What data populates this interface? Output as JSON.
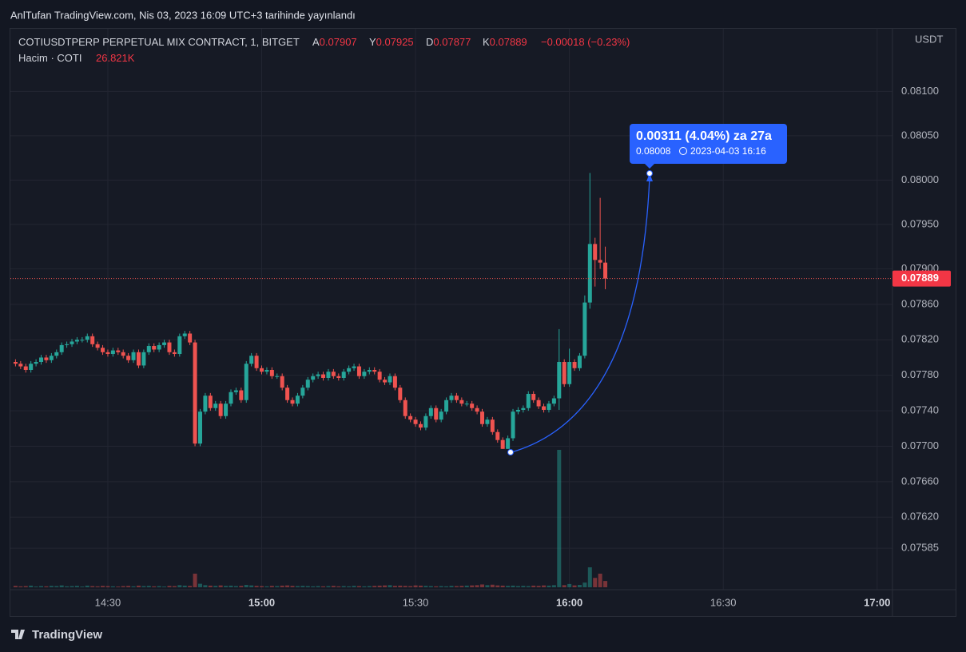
{
  "caption": "AnlTufan TradingView.com, Nis 03, 2023 16:09 UTC+3 tarihinde yayınlandı",
  "footer": "TradingView",
  "chart_data": {
    "type": "candlestick",
    "symbol": "COTIUSDTPERP PERPETUAL MIX CONTRACT, 1, BITGET",
    "ohlc_labels": [
      "A",
      "Y",
      "D",
      "K"
    ],
    "change": "−0.00018 (−0.23%)",
    "currency": "USDT",
    "up_color": "#26a69a",
    "down_color": "#ef5350",
    "grid": true,
    "x": [
      "14:12",
      "14:13",
      "14:14",
      "14:15",
      "14:16",
      "14:17",
      "14:18",
      "14:19",
      "14:20",
      "14:21",
      "14:22",
      "14:23",
      "14:24",
      "14:25",
      "14:26",
      "14:27",
      "14:28",
      "14:29",
      "14:30",
      "14:31",
      "14:32",
      "14:33",
      "14:34",
      "14:35",
      "14:36",
      "14:37",
      "14:38",
      "14:39",
      "14:40",
      "14:41",
      "14:42",
      "14:43",
      "14:44",
      "14:45",
      "14:46",
      "14:47",
      "14:48",
      "14:49",
      "14:50",
      "14:51",
      "14:52",
      "14:53",
      "14:54",
      "14:55",
      "14:56",
      "14:57",
      "14:58",
      "14:59",
      "15:00",
      "15:01",
      "15:02",
      "15:03",
      "15:04",
      "15:05",
      "15:06",
      "15:07",
      "15:08",
      "15:09",
      "15:10",
      "15:11",
      "15:12",
      "15:13",
      "15:14",
      "15:15",
      "15:16",
      "15:17",
      "15:18",
      "15:19",
      "15:20",
      "15:21",
      "15:22",
      "15:23",
      "15:24",
      "15:25",
      "15:26",
      "15:27",
      "15:28",
      "15:29",
      "15:30",
      "15:31",
      "15:32",
      "15:33",
      "15:34",
      "15:35",
      "15:36",
      "15:37",
      "15:38",
      "15:39",
      "15:40",
      "15:41",
      "15:42",
      "15:43",
      "15:44",
      "15:45",
      "15:46",
      "15:47",
      "15:48",
      "15:49",
      "15:50",
      "15:51",
      "15:52",
      "15:53",
      "15:54",
      "15:55",
      "15:56",
      "15:57",
      "15:58",
      "15:59",
      "16:00",
      "16:01",
      "16:02",
      "16:03",
      "16:04",
      "16:05",
      "16:06",
      "16:07"
    ],
    "open": [
      0.07795,
      0.07793,
      0.0779,
      0.07786,
      0.07793,
      0.07795,
      0.078,
      0.07797,
      0.07802,
      0.07806,
      0.07814,
      0.07815,
      0.07818,
      0.0782,
      0.0782,
      0.07824,
      0.07815,
      0.07811,
      0.07806,
      0.07804,
      0.07808,
      0.07806,
      0.07802,
      0.07797,
      0.07806,
      0.07791,
      0.07806,
      0.07813,
      0.07809,
      0.07814,
      0.07817,
      0.07806,
      0.07804,
      0.07824,
      0.07827,
      0.07817,
      0.07703,
      0.07739,
      0.07757,
      0.07743,
      0.07748,
      0.07734,
      0.07748,
      0.07761,
      0.07763,
      0.07752,
      0.07793,
      0.07802,
      0.07788,
      0.07784,
      0.07786,
      0.07779,
      0.07779,
      0.07766,
      0.07752,
      0.07748,
      0.07757,
      0.07766,
      0.07775,
      0.07779,
      0.07781,
      0.07777,
      0.07784,
      0.07779,
      0.07777,
      0.07784,
      0.07788,
      0.0779,
      0.07779,
      0.07784,
      0.07786,
      0.07784,
      0.07775,
      0.07772,
      0.07779,
      0.07766,
      0.07752,
      0.07734,
      0.0773,
      0.07725,
      0.07721,
      0.07734,
      0.07743,
      0.0773,
      0.07739,
      0.07752,
      0.07757,
      0.07752,
      0.07748,
      0.07748,
      0.07743,
      0.07739,
      0.07725,
      0.0773,
      0.07716,
      0.07707,
      0.07697,
      0.07709,
      0.07739,
      0.07741,
      0.07743,
      0.07759,
      0.07752,
      0.07745,
      0.07741,
      0.07748,
      0.07754,
      0.07795,
      0.0777,
      0.07795,
      0.07788,
      0.07802,
      0.07862,
      0.07928,
      0.0791,
      0.07907
    ],
    "high": [
      0.07798,
      0.07796,
      0.07793,
      0.07796,
      0.07798,
      0.07803,
      0.07803,
      0.07805,
      0.07809,
      0.07817,
      0.07818,
      0.07821,
      0.07823,
      0.07823,
      0.07827,
      0.07827,
      0.07818,
      0.07814,
      0.07809,
      0.07811,
      0.07811,
      0.07809,
      0.07805,
      0.07809,
      0.07809,
      0.07809,
      0.07816,
      0.07816,
      0.07817,
      0.0782,
      0.0782,
      0.07809,
      0.07827,
      0.0783,
      0.0783,
      0.0782,
      0.07742,
      0.0776,
      0.0776,
      0.07751,
      0.07751,
      0.07751,
      0.07764,
      0.07766,
      0.07766,
      0.07796,
      0.07805,
      0.07805,
      0.07791,
      0.07789,
      0.07789,
      0.07782,
      0.07782,
      0.07769,
      0.07755,
      0.0776,
      0.07769,
      0.07778,
      0.07782,
      0.07784,
      0.07784,
      0.07787,
      0.07787,
      0.07782,
      0.07787,
      0.07791,
      0.07793,
      0.07793,
      0.07787,
      0.07789,
      0.07789,
      0.07787,
      0.07778,
      0.07782,
      0.07782,
      0.07769,
      0.07755,
      0.07737,
      0.07733,
      0.07728,
      0.07737,
      0.07746,
      0.07746,
      0.07742,
      0.07755,
      0.0776,
      0.0776,
      0.07755,
      0.07751,
      0.07751,
      0.07746,
      0.07742,
      0.07733,
      0.07733,
      0.07719,
      0.0771,
      0.07712,
      0.07742,
      0.07744,
      0.07746,
      0.07762,
      0.07762,
      0.07755,
      0.07748,
      0.07751,
      0.07757,
      0.07832,
      0.07798,
      0.0781,
      0.07798,
      0.07805,
      0.0787,
      0.08008,
      0.07935,
      0.0798,
      0.07925
    ],
    "low": [
      0.0779,
      0.07787,
      0.07783,
      0.07783,
      0.0779,
      0.07792,
      0.07794,
      0.07794,
      0.07799,
      0.07803,
      0.07811,
      0.07812,
      0.07815,
      0.07817,
      0.07817,
      0.07812,
      0.07808,
      0.07803,
      0.07801,
      0.07801,
      0.07803,
      0.07799,
      0.07794,
      0.07794,
      0.07788,
      0.07788,
      0.07803,
      0.07806,
      0.07806,
      0.07811,
      0.07803,
      0.07801,
      0.07801,
      0.07821,
      0.07814,
      0.077,
      0.077,
      0.07736,
      0.0774,
      0.0774,
      0.07731,
      0.07731,
      0.07745,
      0.07758,
      0.07749,
      0.07749,
      0.0779,
      0.07785,
      0.07781,
      0.07781,
      0.07776,
      0.07776,
      0.07763,
      0.07749,
      0.07745,
      0.07745,
      0.07754,
      0.07763,
      0.07772,
      0.07776,
      0.07774,
      0.07774,
      0.07776,
      0.07774,
      0.07774,
      0.07781,
      0.07785,
      0.07776,
      0.07776,
      0.07781,
      0.07781,
      0.07772,
      0.07769,
      0.07769,
      0.07763,
      0.07749,
      0.07731,
      0.07727,
      0.07722,
      0.07718,
      0.07718,
      0.07731,
      0.07727,
      0.07727,
      0.07736,
      0.07749,
      0.07749,
      0.07745,
      0.07745,
      0.0774,
      0.07736,
      0.07722,
      0.07722,
      0.07713,
      0.07704,
      0.07697,
      0.07697,
      0.07706,
      0.07736,
      0.07738,
      0.0774,
      0.07749,
      0.07742,
      0.07738,
      0.07738,
      0.07745,
      0.07741,
      0.07767,
      0.07767,
      0.07785,
      0.07785,
      0.07799,
      0.07855,
      0.0788,
      0.079,
      0.07877
    ],
    "close": [
      0.07793,
      0.0779,
      0.07786,
      0.07793,
      0.07795,
      0.078,
      0.07797,
      0.07802,
      0.07806,
      0.07814,
      0.07815,
      0.07818,
      0.0782,
      0.0782,
      0.07824,
      0.07815,
      0.07811,
      0.07806,
      0.07804,
      0.07808,
      0.07806,
      0.07802,
      0.07797,
      0.07806,
      0.07791,
      0.07806,
      0.07813,
      0.07809,
      0.07814,
      0.07817,
      0.07806,
      0.07804,
      0.07824,
      0.07827,
      0.07817,
      0.07703,
      0.07739,
      0.07757,
      0.07743,
      0.07748,
      0.07734,
      0.07748,
      0.07761,
      0.07763,
      0.07752,
      0.07793,
      0.07802,
      0.07788,
      0.07784,
      0.07786,
      0.07779,
      0.07779,
      0.07766,
      0.07752,
      0.07748,
      0.07757,
      0.07766,
      0.07775,
      0.07779,
      0.07781,
      0.07777,
      0.07784,
      0.07779,
      0.07777,
      0.07784,
      0.07788,
      0.0779,
      0.07779,
      0.07784,
      0.07786,
      0.07784,
      0.07775,
      0.07772,
      0.07779,
      0.07766,
      0.07752,
      0.07734,
      0.0773,
      0.07725,
      0.07721,
      0.07734,
      0.07743,
      0.0773,
      0.07739,
      0.07752,
      0.07757,
      0.07752,
      0.07748,
      0.07748,
      0.07743,
      0.07739,
      0.07725,
      0.0773,
      0.07716,
      0.07707,
      0.07697,
      0.07709,
      0.07739,
      0.07741,
      0.07743,
      0.07759,
      0.07752,
      0.07745,
      0.07741,
      0.07748,
      0.07754,
      0.07795,
      0.0777,
      0.07795,
      0.07788,
      0.07802,
      0.07862,
      0.07928,
      0.0791,
      0.07907,
      0.07889
    ],
    "volume": {
      "name": "Hacim · COTI",
      "last_value_label": "26.821K",
      "values": [
        6000,
        4000,
        5000,
        7000,
        3000,
        5000,
        4000,
        6000,
        5000,
        8000,
        4000,
        5000,
        6000,
        3000,
        7000,
        5000,
        4000,
        6000,
        5000,
        4000,
        3000,
        5000,
        6000,
        4000,
        7000,
        5000,
        6000,
        4000,
        5000,
        3000,
        6000,
        5000,
        9000,
        7000,
        6000,
        58000,
        15000,
        9000,
        7000,
        6000,
        8000,
        6000,
        7000,
        5000,
        6000,
        10000,
        8000,
        6000,
        5000,
        4000,
        6000,
        5000,
        7000,
        8000,
        6000,
        5000,
        6000,
        5000,
        4000,
        5000,
        4000,
        5000,
        6000,
        4000,
        5000,
        4000,
        6000,
        5000,
        4000,
        5000,
        6000,
        7000,
        8000,
        9000,
        6000,
        7000,
        6000,
        5000,
        8000,
        7000,
        6000,
        5000,
        4000,
        5000,
        4000,
        6000,
        5000,
        6000,
        7000,
        8000,
        9000,
        12000,
        9000,
        11000,
        8000,
        7000,
        6000,
        7000,
        5000,
        6000,
        5000,
        7000,
        6000,
        8000,
        7000,
        9000,
        585000,
        9000,
        14000,
        8000,
        10000,
        20000,
        85000,
        40000,
        58000,
        26821
      ]
    },
    "xlim": [
      "14:11",
      "17:03"
    ],
    "xticks": [
      "14:30",
      "15:00",
      "15:30",
      "16:00",
      "16:30",
      "17:00"
    ],
    "ylim": [
      0.07541,
      0.08167
    ],
    "yticks": [
      {
        "value": 0.081,
        "label": "0.08100"
      },
      {
        "value": 0.0805,
        "label": "0.08050"
      },
      {
        "value": 0.08,
        "label": "0.08000"
      },
      {
        "value": 0.0795,
        "label": "0.07950"
      },
      {
        "value": 0.079,
        "label": "0.07900"
      },
      {
        "value": 0.0786,
        "label": "0.07860"
      },
      {
        "value": 0.0782,
        "label": "0.07820"
      },
      {
        "value": 0.0778,
        "label": "0.07780"
      },
      {
        "value": 0.0774,
        "label": "0.07740"
      },
      {
        "value": 0.077,
        "label": "0.07700"
      },
      {
        "value": 0.0766,
        "label": "0.07660"
      },
      {
        "value": 0.0762,
        "label": "0.07620"
      },
      {
        "value": 0.07585,
        "label": "0.07585"
      }
    ],
    "measure": {
      "headline": "0.00311 (4.04%) za 27a",
      "price": "0.08008",
      "datetime": "2023-04-03   16:16"
    }
  }
}
